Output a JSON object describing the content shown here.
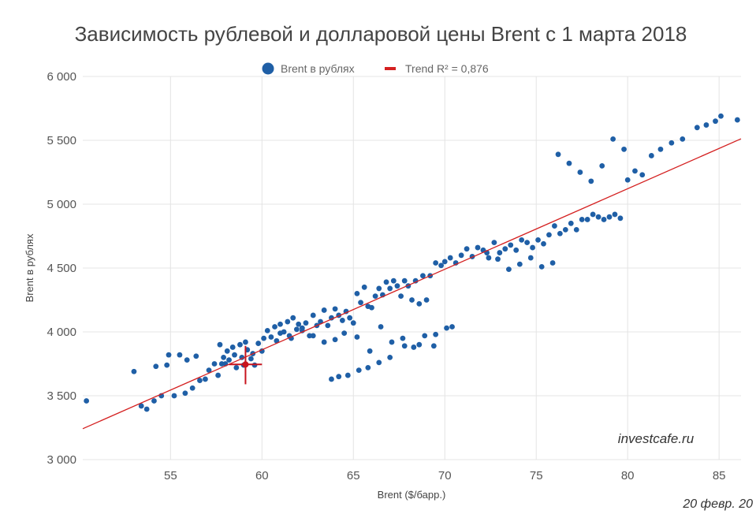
{
  "chart_data": {
    "type": "scatter",
    "title": "Зависимость рублевой и долларовой цены Brent с 1 марта 2018",
    "xlabel": "Brent ($/барр.)",
    "ylabel": "Brent в рублях",
    "xlim": [
      50.2,
      86.2
    ],
    "ylim": [
      3000,
      6000
    ],
    "xticks": [
      55,
      60,
      65,
      70,
      75,
      80,
      85
    ],
    "xtick_labels": [
      "55",
      "60",
      "65",
      "70",
      "75",
      "80",
      "85"
    ],
    "yticks": [
      3000,
      3500,
      4000,
      4500,
      5000,
      5500,
      6000
    ],
    "ytick_labels": [
      "3 000",
      "3 500",
      "4 000",
      "4 500",
      "5 000",
      "5 500",
      "6 000"
    ],
    "grid": true,
    "legend_position": "top-center",
    "series": [
      {
        "name": "Brent в рублях",
        "kind": "points",
        "color": "#1f5fa6",
        "x": [
          50.4,
          53.0,
          53.4,
          53.7,
          54.1,
          54.2,
          54.5,
          54.8,
          54.9,
          55.2,
          55.5,
          55.8,
          55.9,
          56.2,
          56.4,
          56.6,
          56.9,
          57.1,
          57.4,
          57.6,
          57.7,
          57.8,
          57.9,
          58.0,
          58.1,
          58.2,
          58.4,
          58.5,
          58.6,
          58.8,
          58.9,
          59.0,
          59.1,
          59.2,
          59.4,
          59.5,
          59.6,
          59.8,
          60.0,
          60.1,
          60.3,
          60.5,
          60.7,
          60.8,
          61.0,
          61.2,
          61.4,
          61.5,
          61.7,
          61.9,
          62.0,
          62.2,
          62.4,
          62.6,
          62.8,
          63.0,
          63.2,
          63.4,
          63.6,
          63.8,
          64.0,
          64.2,
          64.4,
          64.6,
          64.8,
          65.0,
          65.2,
          65.4,
          65.6,
          65.8,
          66.0,
          66.2,
          66.4,
          66.6,
          66.8,
          67.0,
          67.2,
          67.4,
          67.6,
          67.8,
          68.0,
          68.2,
          68.4,
          68.6,
          68.8,
          69.0,
          69.2,
          69.5,
          69.8,
          70.0,
          70.3,
          70.6,
          70.9,
          71.2,
          71.5,
          71.8,
          72.1,
          72.4,
          72.7,
          73.0,
          73.3,
          73.6,
          73.9,
          74.2,
          74.5,
          74.8,
          75.1,
          75.4,
          75.7,
          76.0,
          76.3,
          76.6,
          76.9,
          77.2,
          77.5,
          77.8,
          78.1,
          78.4,
          78.7,
          79.0,
          79.3,
          79.6,
          80.0,
          80.4,
          80.8,
          81.3,
          81.8,
          82.4,
          83.0,
          83.8,
          84.3,
          84.8,
          85.1,
          86.0,
          61.0,
          61.6,
          62.2,
          62.8,
          63.4,
          64.0,
          64.5,
          65.2,
          65.9,
          66.5,
          67.1,
          67.7,
          68.3,
          68.9,
          69.5,
          70.1,
          63.8,
          64.2,
          64.7,
          65.3,
          65.8,
          66.4,
          67.0,
          67.8,
          68.6,
          69.4,
          70.4,
          76.2,
          76.8,
          77.4,
          78.0,
          78.6,
          79.2,
          79.8,
          72.3,
          72.9,
          73.5,
          74.1,
          74.7,
          75.3,
          75.9
        ],
        "y": [
          3460,
          3690,
          3420,
          3395,
          3460,
          3730,
          3500,
          3740,
          3820,
          3500,
          3820,
          3520,
          3780,
          3560,
          3810,
          3620,
          3630,
          3700,
          3750,
          3660,
          3900,
          3750,
          3800,
          3750,
          3850,
          3780,
          3880,
          3820,
          3720,
          3900,
          3800,
          3740,
          3920,
          3860,
          3790,
          3830,
          3740,
          3910,
          3850,
          3950,
          4010,
          3960,
          4040,
          3930,
          4060,
          4000,
          4080,
          3970,
          4110,
          4020,
          4060,
          4010,
          4070,
          3970,
          4130,
          4050,
          4080,
          4170,
          4050,
          4110,
          4180,
          4130,
          4090,
          4160,
          4110,
          4070,
          4300,
          4230,
          4350,
          4200,
          4190,
          4280,
          4340,
          4290,
          4390,
          4340,
          4400,
          4360,
          4280,
          4400,
          4360,
          4250,
          4400,
          4220,
          4440,
          4250,
          4440,
          4540,
          4520,
          4550,
          4580,
          4540,
          4600,
          4650,
          4590,
          4660,
          4640,
          4580,
          4700,
          4620,
          4650,
          4680,
          4640,
          4720,
          4700,
          4660,
          4720,
          4690,
          4760,
          4830,
          4770,
          4800,
          4850,
          4800,
          4880,
          4880,
          4920,
          4900,
          4880,
          4900,
          4920,
          4890,
          5190,
          5260,
          5230,
          5380,
          5430,
          5480,
          5510,
          5600,
          5620,
          5650,
          5690,
          5660,
          3990,
          3950,
          4030,
          3970,
          3920,
          3940,
          3990,
          3960,
          3850,
          4040,
          3920,
          3950,
          3880,
          3970,
          3980,
          4030,
          3630,
          3650,
          3660,
          3700,
          3720,
          3760,
          3800,
          3890,
          3900,
          3890,
          4040,
          5390,
          5320,
          5250,
          5180,
          5300,
          5510,
          5430,
          4620,
          4570,
          4490,
          4530,
          4580,
          4510,
          4540
        ]
      },
      {
        "name": "Trend R² = 0,876",
        "kind": "line",
        "color": "#d42020",
        "x": [
          50.2,
          86.2
        ],
        "y": [
          3242,
          5512
        ]
      }
    ],
    "highlight": {
      "x": 59.1,
      "y": 3745,
      "x_range": [
        58.2,
        60.0
      ],
      "y_range": [
        3590,
        3890
      ],
      "color": "#c8141e"
    }
  },
  "legend": {
    "scatter_label": "Brent в рублях",
    "trend_label": "Trend R² = 0,876",
    "scatter_color": "#1f5fa6",
    "trend_color": "#d42020"
  },
  "watermark": "investcafe.ru",
  "date_stamp": "20 февр. 20"
}
